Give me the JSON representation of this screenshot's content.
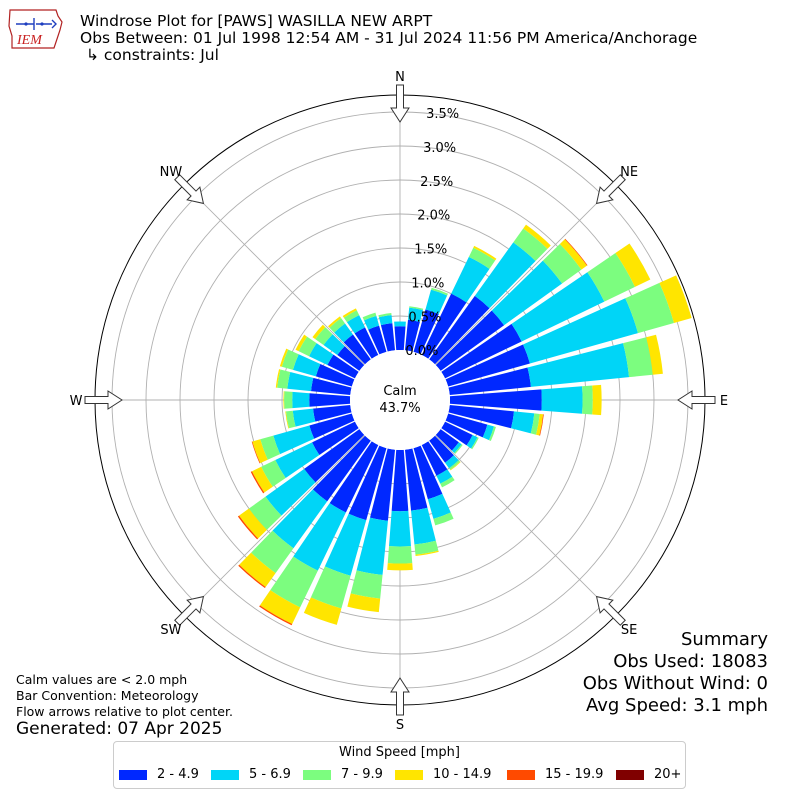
{
  "header": {
    "logo_text": "IEM",
    "title": "Windrose Plot for [PAWS] WASILLA NEW ARPT",
    "obs_between": "Obs Between: 01 Jul 1998 12:54 AM - 31 Jul 2024 11:56 PM America/Anchorage",
    "constraints": "↳ constraints: Jul"
  },
  "summary": {
    "title": "Summary",
    "obs_used": "Obs Used: 18083",
    "obs_without_wind": "Obs Without Wind: 0",
    "avg_speed": "Avg Speed: 3.1 mph"
  },
  "notes": {
    "calm_note": "Calm values are < 2.0 mph",
    "bar_convention": "Bar Convention: Meteorology",
    "flow_arrows": "Flow arrows relative to plot center.",
    "generated": "Generated: 07 Apr 2025"
  },
  "legend": {
    "title": "Wind Speed [mph]",
    "items": [
      {
        "label": "2 - 4.9",
        "color": "#0028ff"
      },
      {
        "label": "5 - 6.9",
        "color": "#00d5f7"
      },
      {
        "label": "7 - 9.9",
        "color": "#7cfd7f"
      },
      {
        "label": "10 - 14.9",
        "color": "#ffe500"
      },
      {
        "label": "15 - 19.9",
        "color": "#ff4a00"
      },
      {
        "label": "20+",
        "color": "#800000"
      }
    ]
  },
  "chart_data": {
    "type": "windrose",
    "calm": {
      "label": "Calm",
      "value": "43.7%"
    },
    "directions": [
      "N",
      "NE",
      "E",
      "SE",
      "S",
      "SW",
      "W",
      "NW"
    ],
    "radial_ticks": [
      "0.0%",
      "0.5%",
      "1.0%",
      "1.5%",
      "2.0%",
      "2.5%",
      "3.0%",
      "3.5%"
    ],
    "rmax": 3.75,
    "bin_colors": [
      "#0028ff",
      "#00d5f7",
      "#7cfd7f",
      "#ffe500",
      "#ff4a00",
      "#800000"
    ],
    "sectors": [
      {
        "dir": 0,
        "values": [
          0.35,
          0.07,
          0.0,
          0.0,
          0.0,
          0.0
        ]
      },
      {
        "dir": 10,
        "values": [
          0.45,
          0.18,
          0.02,
          0.0,
          0.0,
          0.0
        ]
      },
      {
        "dir": 20,
        "values": [
          0.65,
          0.3,
          0.03,
          0.0,
          0.0,
          0.0
        ]
      },
      {
        "dir": 30,
        "values": [
          1.0,
          0.6,
          0.15,
          0.03,
          0.0,
          0.0
        ]
      },
      {
        "dir": 40,
        "values": [
          1.15,
          0.97,
          0.25,
          0.07,
          0.0,
          0.0
        ]
      },
      {
        "dir": 50,
        "values": [
          1.15,
          1.05,
          0.35,
          0.1,
          0.01,
          0.0
        ]
      },
      {
        "dir": 60,
        "values": [
          1.25,
          1.35,
          0.5,
          0.25,
          0.0,
          0.0
        ]
      },
      {
        "dir": 70,
        "values": [
          1.25,
          1.65,
          0.55,
          0.27,
          0.0,
          0.0
        ]
      },
      {
        "dir": 80,
        "values": [
          1.2,
          1.45,
          0.35,
          0.15,
          0.0,
          0.0
        ]
      },
      {
        "dir": 90,
        "values": [
          1.35,
          0.6,
          0.15,
          0.13,
          0.0,
          0.0
        ]
      },
      {
        "dir": 100,
        "values": [
          0.95,
          0.3,
          0.08,
          0.05,
          0.01,
          0.0
        ]
      },
      {
        "dir": 110,
        "values": [
          0.6,
          0.1,
          0.03,
          0.0,
          0.0,
          0.0
        ]
      },
      {
        "dir": 120,
        "values": [
          0.45,
          0.08,
          0.02,
          0.0,
          0.0,
          0.0
        ]
      },
      {
        "dir": 130,
        "values": [
          0.33,
          0.05,
          0.02,
          0.0,
          0.0,
          0.0
        ]
      },
      {
        "dir": 140,
        "values": [
          0.4,
          0.1,
          0.03,
          0.01,
          0.0,
          0.0
        ]
      },
      {
        "dir": 150,
        "values": [
          0.5,
          0.13,
          0.06,
          0.0,
          0.0,
          0.0
        ]
      },
      {
        "dir": 160,
        "values": [
          0.78,
          0.3,
          0.1,
          0.0,
          0.0,
          0.0
        ]
      },
      {
        "dir": 170,
        "values": [
          0.9,
          0.5,
          0.15,
          0.02,
          0.0,
          0.0
        ]
      },
      {
        "dir": 180,
        "values": [
          0.9,
          0.52,
          0.25,
          0.1,
          0.0,
          0.0
        ]
      },
      {
        "dir": 190,
        "values": [
          1.05,
          0.8,
          0.35,
          0.2,
          0.0,
          0.0
        ]
      },
      {
        "dir": 200,
        "values": [
          1.1,
          0.85,
          0.5,
          0.25,
          0.0,
          0.0
        ]
      },
      {
        "dir": 210,
        "values": [
          1.1,
          0.95,
          0.6,
          0.27,
          0.02,
          0.0
        ]
      },
      {
        "dir": 220,
        "values": [
          1.1,
          0.85,
          0.45,
          0.25,
          0.02,
          0.0
        ]
      },
      {
        "dir": 230,
        "values": [
          1.0,
          0.7,
          0.3,
          0.18,
          0.02,
          0.0
        ]
      },
      {
        "dir": 240,
        "values": [
          0.7,
          0.6,
          0.23,
          0.15,
          0.02,
          0.0
        ]
      },
      {
        "dir": 250,
        "values": [
          0.65,
          0.55,
          0.2,
          0.12,
          0.01,
          0.0
        ]
      },
      {
        "dir": 260,
        "values": [
          0.55,
          0.3,
          0.1,
          0.01,
          0.0,
          0.0
        ]
      },
      {
        "dir": 270,
        "values": [
          0.6,
          0.25,
          0.12,
          0.01,
          0.0,
          0.0
        ]
      },
      {
        "dir": 280,
        "values": [
          0.58,
          0.35,
          0.15,
          0.02,
          0.0,
          0.0
        ]
      },
      {
        "dir": 290,
        "values": [
          0.55,
          0.35,
          0.17,
          0.03,
          0.0,
          0.0
        ]
      },
      {
        "dir": 300,
        "values": [
          0.45,
          0.3,
          0.17,
          0.05,
          0.0,
          0.0
        ]
      },
      {
        "dir": 310,
        "values": [
          0.4,
          0.25,
          0.15,
          0.05,
          0.0,
          0.0
        ]
      },
      {
        "dir": 320,
        "values": [
          0.45,
          0.2,
          0.1,
          0.03,
          0.0,
          0.0
        ]
      },
      {
        "dir": 330,
        "values": [
          0.45,
          0.2,
          0.08,
          0.03,
          0.0,
          0.0
        ]
      },
      {
        "dir": 340,
        "values": [
          0.4,
          0.15,
          0.05,
          0.0,
          0.0,
          0.0
        ]
      },
      {
        "dir": 350,
        "values": [
          0.4,
          0.12,
          0.03,
          0.0,
          0.0,
          0.0
        ]
      }
    ]
  }
}
